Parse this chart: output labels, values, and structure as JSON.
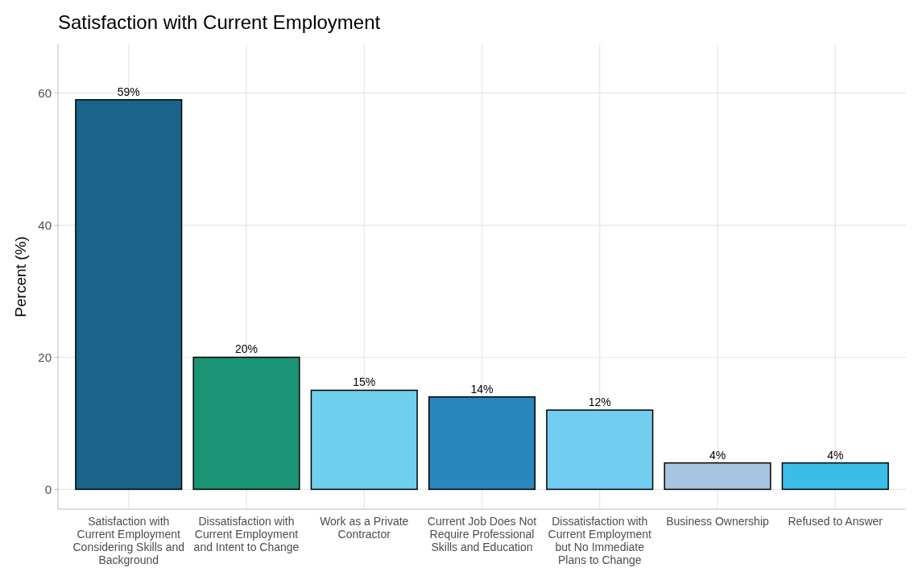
{
  "chart_data": {
    "type": "bar",
    "title": "Satisfaction with Current Employment",
    "ylabel": "Percent (%)",
    "categories": [
      "Satisfaction with Current Employment Considering Skills and Background",
      "Dissatisfaction with Current Employment and Intent to Change",
      "Work as a Private Contractor",
      "Current Job Does Not Require Professional Skills and Education",
      "Dissatisfaction with Current Employment but No Immediate Plans to Change",
      "Business Ownership",
      "Refused to Answer"
    ],
    "values": [
      59,
      20,
      15,
      14,
      12,
      4,
      4
    ],
    "value_labels": [
      "59%",
      "20%",
      "15%",
      "14%",
      "12%",
      "4%",
      "4%"
    ],
    "colors": [
      "#1a6489",
      "#1a9474",
      "#71cfee",
      "#2b86bf",
      "#72cdf1",
      "#a8c4e0",
      "#3bbdea"
    ],
    "ylim": [
      -3,
      67.4
    ],
    "yticks": [
      0,
      20,
      40,
      60
    ],
    "grid": true
  }
}
